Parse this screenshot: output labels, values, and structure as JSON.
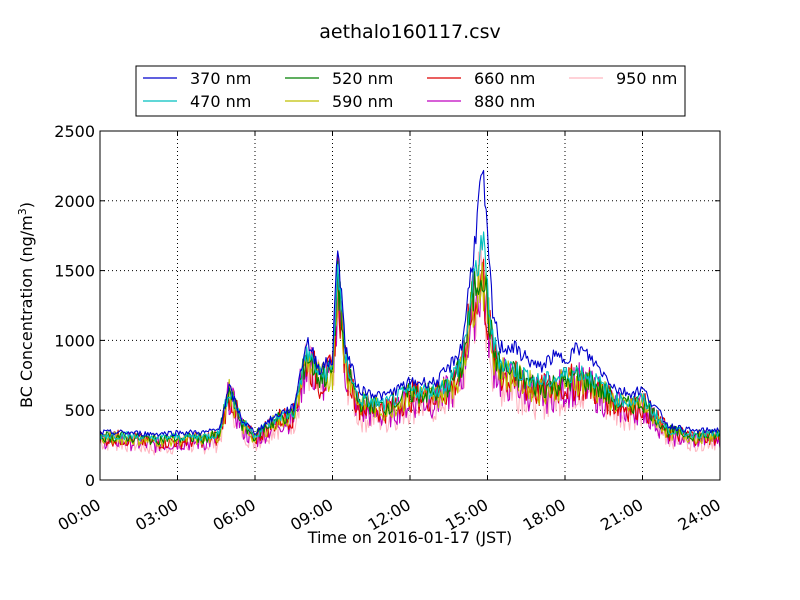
{
  "chart_data": {
    "type": "line",
    "title": "aethalo160117.csv",
    "xlabel": "Time on 2016-01-17 (JST)",
    "ylabel": "BC Concentration (ng/m",
    "ylabel_sup": "3",
    "ylabel_end": ")",
    "xlim": [
      0,
      24
    ],
    "ylim": [
      0,
      2500
    ],
    "x_ticks": [
      0,
      3,
      6,
      9,
      12,
      15,
      18,
      21,
      24
    ],
    "x_tick_labels": [
      "00:00",
      "03:00",
      "06:00",
      "09:00",
      "12:00",
      "15:00",
      "18:00",
      "21:00",
      "24:00"
    ],
    "y_ticks": [
      0,
      500,
      1000,
      1500,
      2000,
      2500
    ],
    "y_tick_labels": [
      "0",
      "500",
      "1000",
      "1500",
      "2000",
      "2500"
    ],
    "grid": true,
    "legend_position": "top",
    "x_keypoints": [
      0,
      1,
      2,
      3,
      4,
      4.6,
      5,
      5.5,
      6,
      6.5,
      7,
      7.5,
      8,
      8.5,
      9,
      9.2,
      9.5,
      10,
      11,
      12,
      13,
      13.5,
      14,
      14.5,
      14.8,
      15.2,
      15.5,
      16,
      17,
      17.5,
      18,
      18.5,
      19,
      20,
      20.5,
      21,
      22,
      23,
      24
    ],
    "series": [
      {
        "name": "370 nm",
        "color": "#0000cc",
        "values": [
          340,
          340,
          330,
          340,
          340,
          360,
          660,
          430,
          340,
          420,
          480,
          520,
          1000,
          800,
          860,
          1720,
          950,
          650,
          600,
          700,
          700,
          800,
          950,
          1700,
          2220,
          1200,
          950,
          950,
          800,
          880,
          870,
          950,
          870,
          650,
          620,
          650,
          390,
          350,
          360
        ]
      },
      {
        "name": "470 nm",
        "color": "#00bfbf",
        "values": [
          320,
          320,
          300,
          310,
          310,
          330,
          650,
          420,
          320,
          400,
          460,
          480,
          920,
          750,
          800,
          1550,
          870,
          580,
          540,
          640,
          640,
          700,
          850,
          1450,
          1720,
          1000,
          850,
          800,
          700,
          720,
          750,
          780,
          740,
          580,
          560,
          580,
          360,
          330,
          330
        ]
      },
      {
        "name": "520 nm",
        "color": "#007f00",
        "values": [
          310,
          310,
          290,
          300,
          300,
          320,
          640,
          400,
          310,
          390,
          450,
          470,
          900,
          730,
          780,
          1480,
          840,
          560,
          520,
          620,
          620,
          680,
          800,
          1380,
          1550,
          950,
          800,
          760,
          660,
          680,
          700,
          740,
          700,
          560,
          530,
          560,
          350,
          320,
          320
        ]
      },
      {
        "name": "590 nm",
        "color": "#bfbf00",
        "values": [
          300,
          300,
          280,
          290,
          290,
          310,
          630,
          390,
          300,
          380,
          440,
          460,
          880,
          720,
          760,
          1440,
          820,
          550,
          500,
          600,
          600,
          660,
          780,
          1340,
          1500,
          920,
          780,
          740,
          640,
          660,
          690,
          720,
          680,
          550,
          520,
          550,
          340,
          310,
          310
        ]
      },
      {
        "name": "660 nm",
        "color": "#dd0000",
        "values": [
          300,
          300,
          270,
          280,
          290,
          300,
          620,
          380,
          300,
          380,
          440,
          460,
          880,
          710,
          760,
          1430,
          810,
          540,
          500,
          600,
          600,
          650,
          780,
          1330,
          1480,
          900,
          760,
          720,
          630,
          650,
          680,
          710,
          670,
          540,
          520,
          540,
          340,
          310,
          310
        ]
      },
      {
        "name": "880 nm",
        "color": "#bf00bf",
        "values": [
          290,
          280,
          250,
          270,
          270,
          290,
          610,
          370,
          280,
          360,
          420,
          440,
          860,
          690,
          740,
          1400,
          790,
          500,
          460,
          570,
          570,
          620,
          750,
          1300,
          1450,
          870,
          730,
          700,
          600,
          630,
          660,
          690,
          650,
          520,
          500,
          520,
          320,
          290,
          300
        ]
      },
      {
        "name": "950 nm",
        "color": "#ffb6c1",
        "values": [
          280,
          270,
          230,
          250,
          250,
          270,
          600,
          360,
          270,
          350,
          410,
          430,
          840,
          670,
          720,
          1360,
          770,
          470,
          430,
          540,
          540,
          600,
          720,
          1260,
          1400,
          840,
          700,
          670,
          580,
          600,
          640,
          670,
          630,
          500,
          480,
          500,
          310,
          280,
          290
        ]
      }
    ]
  }
}
